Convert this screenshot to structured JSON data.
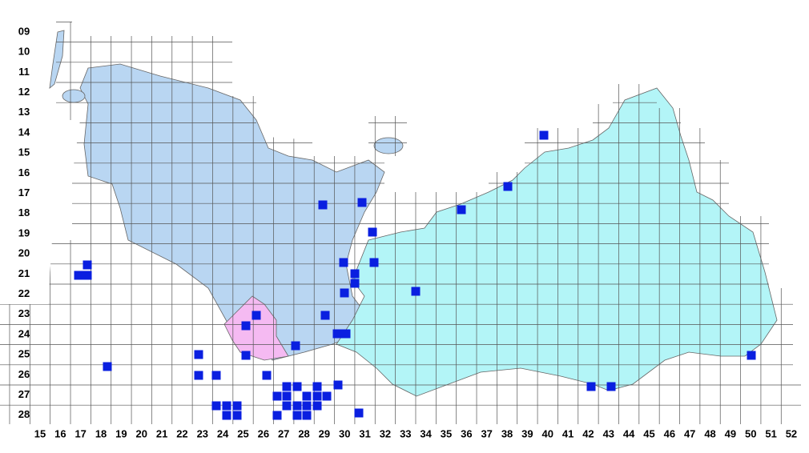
{
  "map": {
    "row_labels": [
      "09",
      "10",
      "11",
      "12",
      "13",
      "14",
      "15",
      "16",
      "17",
      "18",
      "19",
      "20",
      "21",
      "22",
      "23",
      "24",
      "25",
      "26",
      "27",
      "28"
    ],
    "column_labels": [
      "15",
      "16",
      "17",
      "18",
      "19",
      "20",
      "21",
      "22",
      "23",
      "24",
      "25",
      "26",
      "27",
      "28",
      "29",
      "30",
      "31",
      "32",
      "33",
      "34",
      "35",
      "36",
      "37",
      "38",
      "39",
      "40",
      "41",
      "42",
      "43",
      "44",
      "45",
      "46",
      "47",
      "48",
      "49",
      "50",
      "51",
      "52"
    ]
  }
}
